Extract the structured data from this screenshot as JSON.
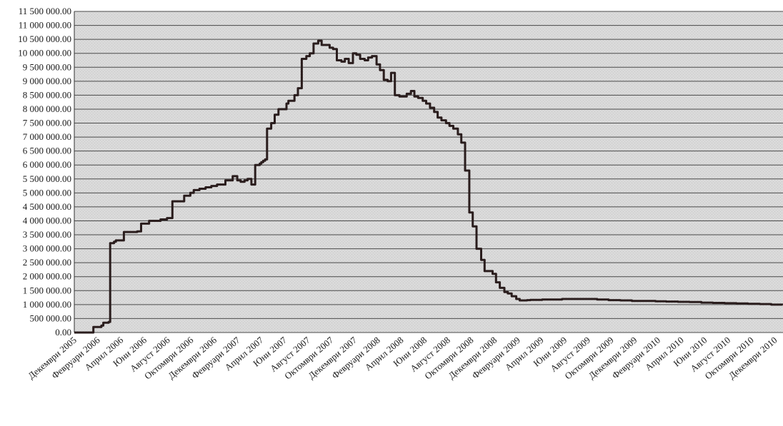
{
  "chart_data": {
    "type": "line",
    "title": "",
    "xlabel": "",
    "ylabel": "",
    "ylim": [
      0,
      11500000
    ],
    "grid": true,
    "legend": "none",
    "colors": {
      "line": "#2a1d1d",
      "plot_bg": "#d9d9d9",
      "grid": "#4a4a4a"
    },
    "y_ticks": [
      "0.00",
      "500 000.00",
      "1 000 000.00",
      "1 500 000.00",
      "2 000 000.00",
      "2 500 000.00",
      "3 000 000.00",
      "3 500 000.00",
      "4 000 000.00",
      "4 500 000.00",
      "5 000 000.00",
      "5 500 000.00",
      "6 000 000.00",
      "6 500 000.00",
      "7 000 000.00",
      "7 500 000.00",
      "8 000 000.00",
      "8 500 000.00",
      "9 000 000.00",
      "9 500 000.00",
      "10 000 000.00",
      "10 500 000.00",
      "11 000 000.00",
      "11 500 000.00"
    ],
    "x_ticks": [
      "Декември 2005",
      "Февруари 2006",
      "Април 2006",
      "Юни 2006",
      "Август 2006",
      "Октомври 2006",
      "Декември 2006",
      "Февруари 2007",
      "Април 2007",
      "Юни 2007",
      "Август 2007",
      "Октомври 2007",
      "Декември 2007",
      "Февруари 2008",
      "Април 2008",
      "Юни 2008",
      "Август 2008",
      "Октомври 2008",
      "Декември 2008",
      "Февруари 2009",
      "Април 2009",
      "Юни 2009",
      "Август 2009",
      "Октомври 2009",
      "Декември 2009",
      "Февруари 2010",
      "Април 2010",
      "Юни 2010",
      "Август 2010",
      "Октомври 2010",
      "Декември 2010"
    ],
    "series": [
      {
        "x": [
          "2005-12-01",
          "2006-01-15",
          "2006-01-20",
          "2006-02-10",
          "2006-02-15",
          "2006-03-01",
          "2006-03-05",
          "2006-03-15",
          "2006-03-20",
          "2006-04-10",
          "2006-04-20",
          "2006-05-15",
          "2006-05-25",
          "2006-06-15",
          "2006-07-15",
          "2006-08-01",
          "2006-08-15",
          "2006-09-15",
          "2006-10-01",
          "2006-10-10",
          "2006-10-25",
          "2006-11-10",
          "2006-11-25",
          "2006-12-10",
          "2007-01-01",
          "2007-01-20",
          "2007-02-01",
          "2007-02-10",
          "2007-02-20",
          "2007-02-28",
          "2007-03-10",
          "2007-03-20",
          "2007-04-01",
          "2007-04-05",
          "2007-04-10",
          "2007-04-15",
          "2007-04-20",
          "2007-05-01",
          "2007-05-10",
          "2007-05-20",
          "2007-06-10",
          "2007-06-15",
          "2007-07-01",
          "2007-07-10",
          "2007-07-20",
          "2007-08-01",
          "2007-08-10",
          "2007-08-20",
          "2007-09-01",
          "2007-09-10",
          "2007-09-20",
          "2007-10-01",
          "2007-10-10",
          "2007-10-20",
          "2007-11-01",
          "2007-11-10",
          "2007-11-20",
          "2007-12-01",
          "2007-12-10",
          "2007-12-20",
          "2008-01-01",
          "2008-01-10",
          "2008-01-20",
          "2008-02-01",
          "2008-02-10",
          "2008-02-20",
          "2008-03-01",
          "2008-03-10",
          "2008-03-20",
          "2008-04-01",
          "2008-04-10",
          "2008-04-20",
          "2008-05-01",
          "2008-05-10",
          "2008-05-20",
          "2008-06-01",
          "2008-06-10",
          "2008-06-20",
          "2008-07-01",
          "2008-07-10",
          "2008-07-20",
          "2008-08-01",
          "2008-08-10",
          "2008-08-20",
          "2008-09-01",
          "2008-09-10",
          "2008-09-20",
          "2008-10-01",
          "2008-10-10",
          "2008-10-20",
          "2008-11-01",
          "2008-11-10",
          "2008-11-20",
          "2008-12-01",
          "2008-12-10",
          "2008-12-20",
          "2009-01-01",
          "2009-01-10",
          "2009-01-20",
          "2009-02-01",
          "2009-02-10",
          "2009-02-20",
          "2009-03-01",
          "2009-03-10",
          "2009-03-20",
          "2009-04-01",
          "2009-04-10",
          "2009-05-01",
          "2009-06-01",
          "2009-07-01",
          "2009-08-01",
          "2009-09-01",
          "2009-10-01",
          "2009-11-01",
          "2009-12-01",
          "2010-01-01",
          "2010-02-01",
          "2010-03-01",
          "2010-04-01",
          "2010-05-01",
          "2010-06-01",
          "2010-07-01",
          "2010-08-01",
          "2010-09-01",
          "2010-10-01",
          "2010-11-01",
          "2010-12-01",
          "2010-12-31"
        ],
        "values": [
          0,
          0,
          200000,
          250000,
          350000,
          380000,
          3200000,
          3250000,
          3300000,
          3600000,
          3600000,
          3620000,
          3900000,
          4000000,
          4050000,
          4100000,
          4700000,
          4900000,
          5000000,
          5100000,
          5150000,
          5200000,
          5250000,
          5300000,
          5450000,
          5600000,
          5450000,
          5400000,
          5450000,
          5500000,
          5300000,
          6000000,
          6050000,
          6100000,
          6150000,
          6200000,
          7300000,
          7500000,
          7800000,
          8000000,
          8200000,
          8300000,
          8500000,
          8750000,
          9800000,
          9900000,
          10000000,
          10350000,
          10450000,
          10300000,
          10300000,
          10200000,
          10150000,
          9750000,
          9700000,
          9800000,
          9650000,
          10000000,
          9950000,
          9800000,
          9750000,
          9850000,
          9900000,
          9600000,
          9400000,
          9050000,
          9000000,
          9300000,
          8500000,
          8450000,
          8450000,
          8550000,
          8650000,
          8450000,
          8400000,
          8300000,
          8200000,
          8050000,
          7900000,
          7700000,
          7600000,
          7500000,
          7400000,
          7300000,
          7100000,
          6800000,
          5800000,
          4300000,
          3800000,
          3000000,
          2600000,
          2200000,
          2200000,
          2100000,
          1800000,
          1600000,
          1450000,
          1400000,
          1300000,
          1200000,
          1150000,
          1150000,
          1160000,
          1170000,
          1170000,
          1170000,
          1180000,
          1180000,
          1200000,
          1200000,
          1200000,
          1180000,
          1160000,
          1150000,
          1130000,
          1130000,
          1120000,
          1110000,
          1100000,
          1090000,
          1070000,
          1060000,
          1050000,
          1040000,
          1030000,
          1020000,
          1000000,
          990000
        ]
      }
    ]
  }
}
